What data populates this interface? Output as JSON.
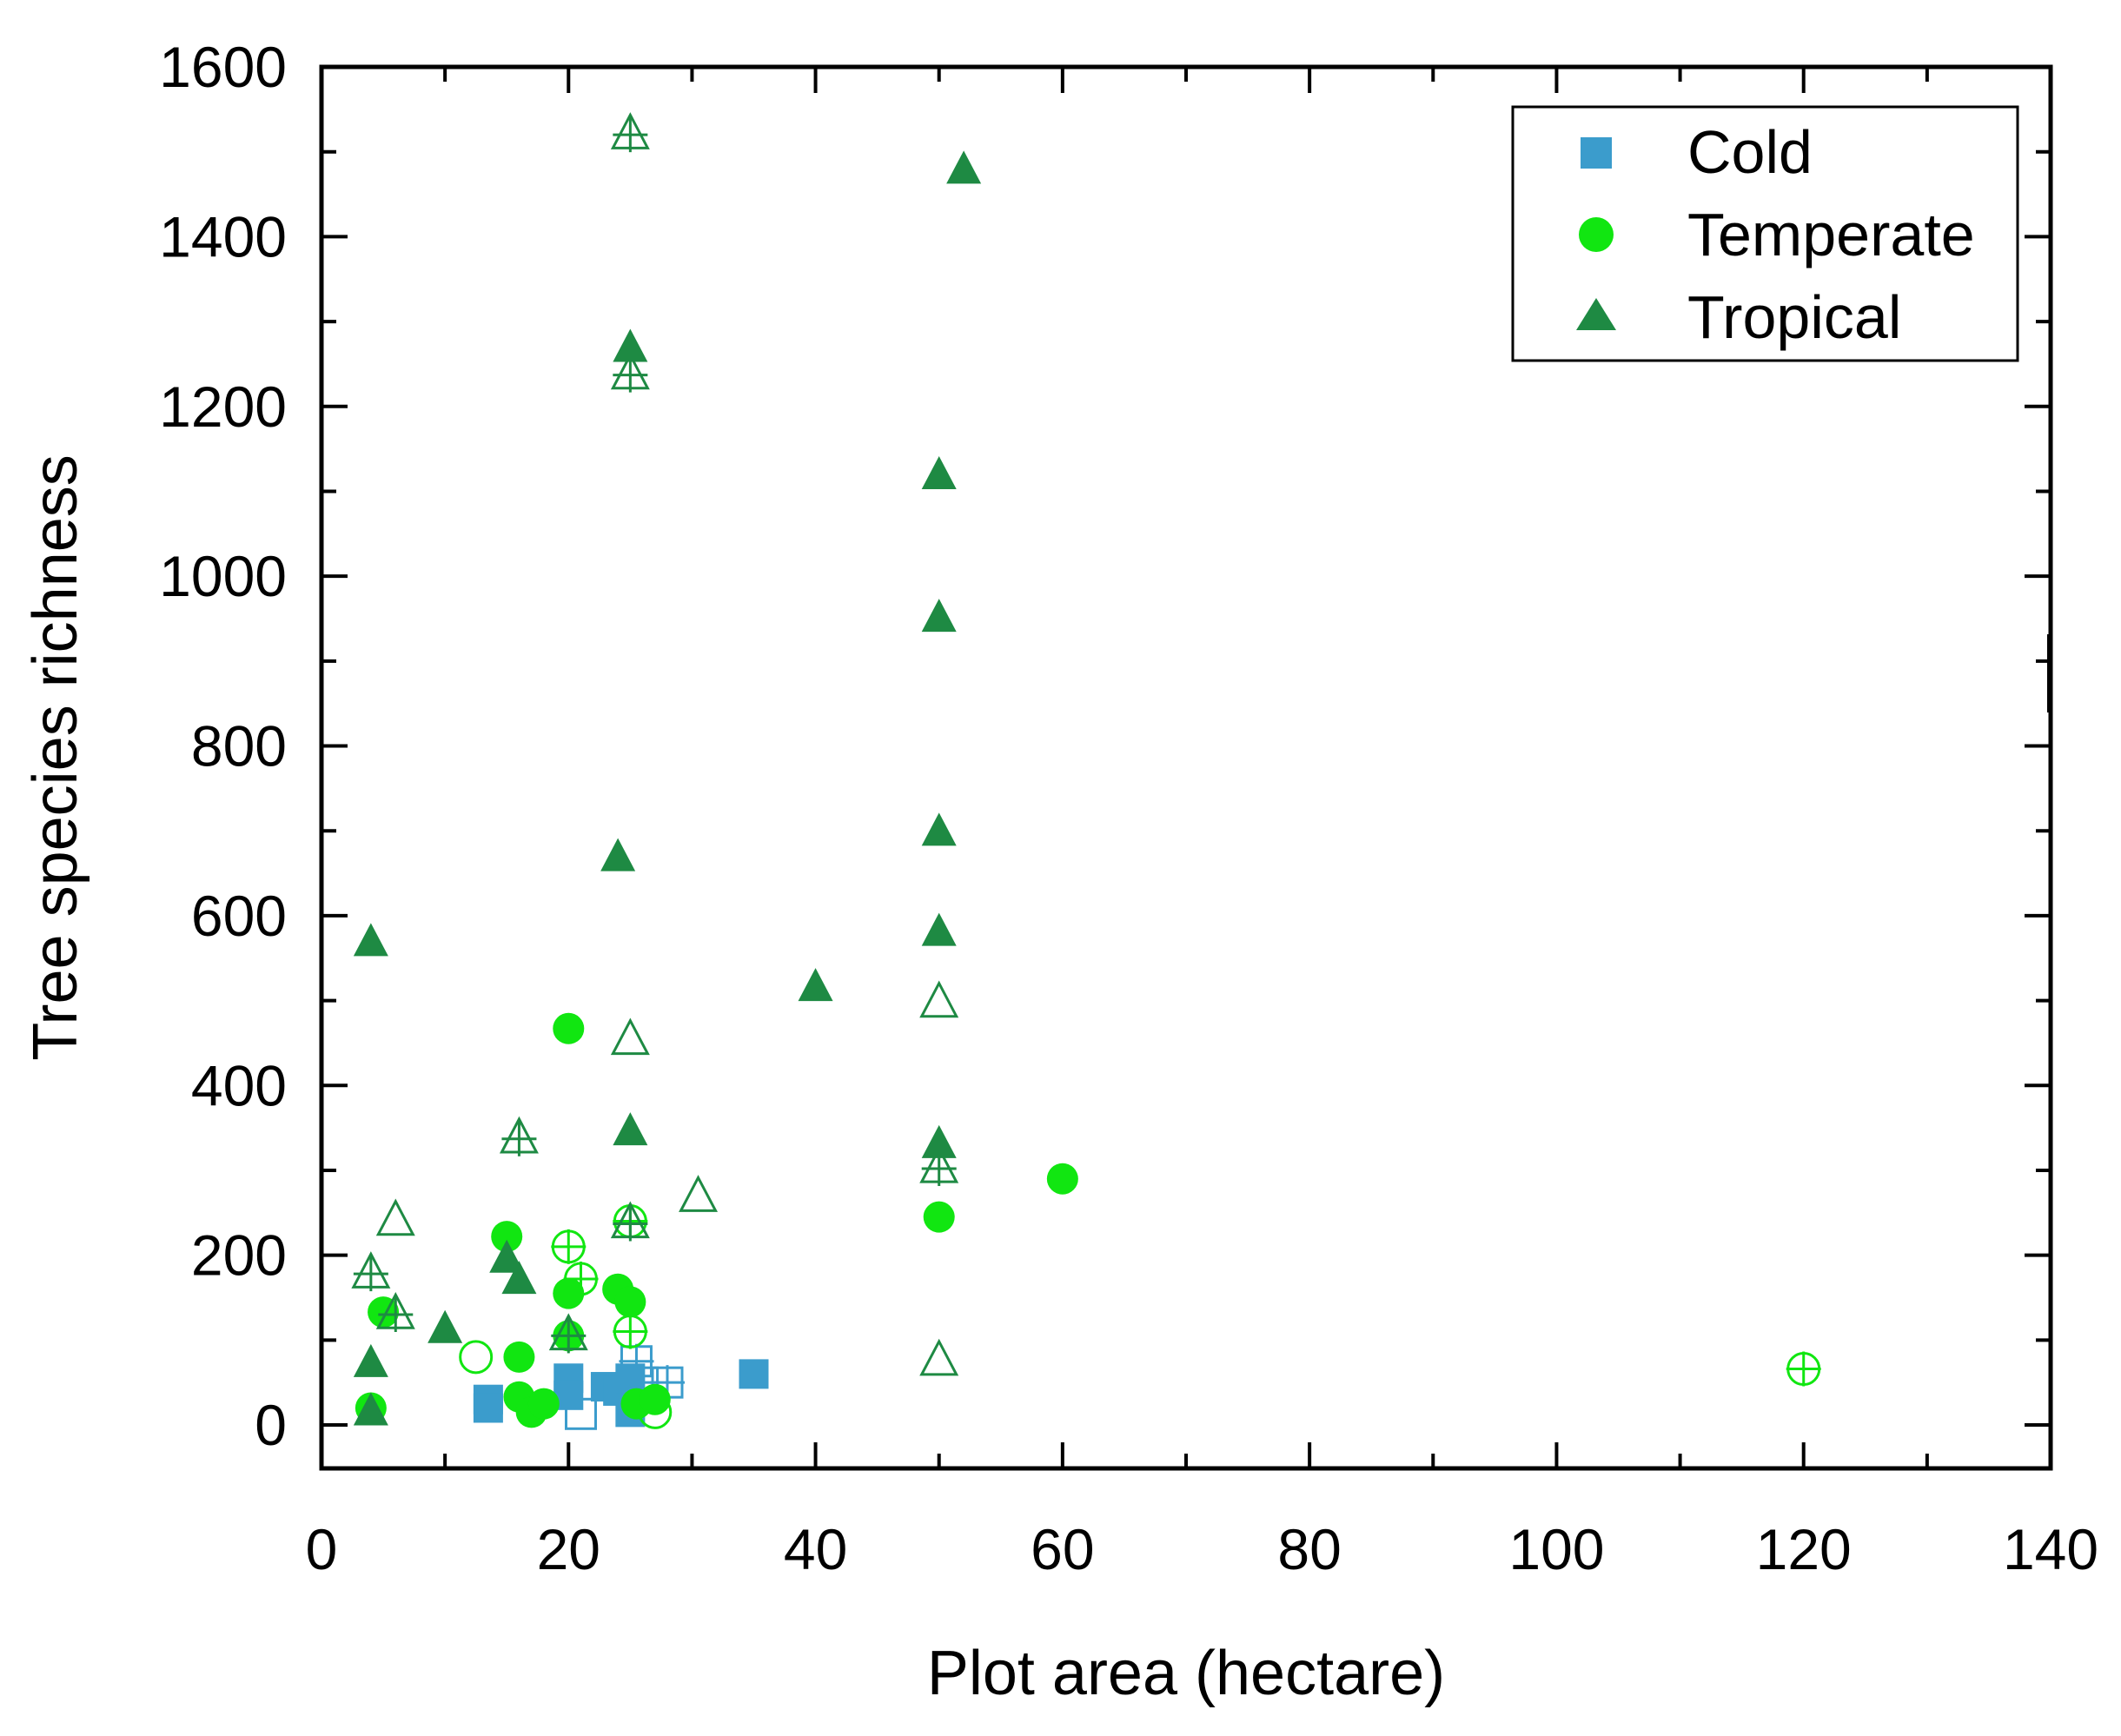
{
  "chart_data": {
    "type": "scatter",
    "title": "",
    "xlabel": "Plot area (hectare)",
    "ylabel": "Tree species richness",
    "xlim": [
      0,
      140
    ],
    "ylim": [
      -50,
      1600
    ],
    "xticks": [
      0,
      20,
      40,
      60,
      80,
      100,
      120,
      140
    ],
    "yticks": [
      0,
      200,
      400,
      600,
      800,
      1000,
      1200,
      1400,
      1600
    ],
    "xtick_labels": [
      "0",
      "20",
      "40",
      "60",
      "80",
      "100",
      "120",
      "140"
    ],
    "ytick_labels": [
      "0",
      "200",
      "400",
      "600",
      "800",
      "1000",
      "1200",
      "1400",
      "1600"
    ],
    "grid": false,
    "legend_position": "top-right",
    "series": [
      {
        "name": "Cold",
        "marker": "square",
        "color": "#3b9ccc",
        "filled": [
          [
            13.5,
            30
          ],
          [
            13.5,
            20
          ],
          [
            20,
            55
          ],
          [
            20,
            35
          ],
          [
            23,
            45
          ],
          [
            24,
            40
          ],
          [
            25,
            55
          ],
          [
            25,
            15
          ],
          [
            35,
            60
          ]
        ],
        "open": [
          [
            21,
            13
          ]
        ],
        "open_cross": [
          [
            25.5,
            75
          ],
          [
            26,
            50
          ],
          [
            28,
            50
          ]
        ]
      },
      {
        "name": "Temperate",
        "marker": "circle",
        "color": "#11e611",
        "filled": [
          [
            4,
            20
          ],
          [
            5,
            133
          ],
          [
            15,
            222
          ],
          [
            16,
            80
          ],
          [
            16,
            33
          ],
          [
            17,
            15
          ],
          [
            18,
            25
          ],
          [
            20,
            467
          ],
          [
            20,
            155
          ],
          [
            20,
            105
          ],
          [
            24,
            160
          ],
          [
            25,
            145
          ],
          [
            25.5,
            25
          ],
          [
            27,
            30
          ],
          [
            50,
            245
          ],
          [
            60,
            290
          ]
        ],
        "open": [
          [
            12.5,
            80
          ],
          [
            27,
            15
          ]
        ],
        "open_cross": [
          [
            20,
            210
          ],
          [
            21,
            172
          ],
          [
            25,
            240
          ],
          [
            25,
            110
          ],
          [
            120,
            66
          ]
        ]
      },
      {
        "name": "Tropical",
        "marker": "triangle",
        "color": "#1e8a43",
        "filled": [
          [
            4,
            568
          ],
          [
            4,
            72
          ],
          [
            4,
            15
          ],
          [
            10,
            112
          ],
          [
            15,
            195
          ],
          [
            16,
            170
          ],
          [
            24,
            668
          ],
          [
            25,
            1268
          ],
          [
            25,
            345
          ],
          [
            40,
            515
          ],
          [
            50,
            1118
          ],
          [
            50,
            950
          ],
          [
            50,
            698
          ],
          [
            50,
            580
          ],
          [
            50,
            330
          ],
          [
            52,
            1478
          ]
        ],
        "open": [
          [
            6,
            240
          ],
          [
            25,
            453
          ],
          [
            30.5,
            268
          ],
          [
            50,
            497
          ],
          [
            50,
            75
          ]
        ],
        "open_cross": [
          [
            4,
            178
          ],
          [
            6,
            130
          ],
          [
            16,
            337
          ],
          [
            20,
            105
          ],
          [
            25,
            1520
          ],
          [
            25,
            1237
          ],
          [
            25,
            237
          ],
          [
            50,
            302
          ]
        ]
      }
    ]
  },
  "legend": {
    "items": [
      {
        "label": "Cold",
        "marker": "square",
        "color": "#3b9ccc"
      },
      {
        "label": "Temperate",
        "marker": "circle",
        "color": "#11e611"
      },
      {
        "label": "Tropical",
        "marker": "triangle",
        "color": "#1e8a43"
      }
    ]
  }
}
